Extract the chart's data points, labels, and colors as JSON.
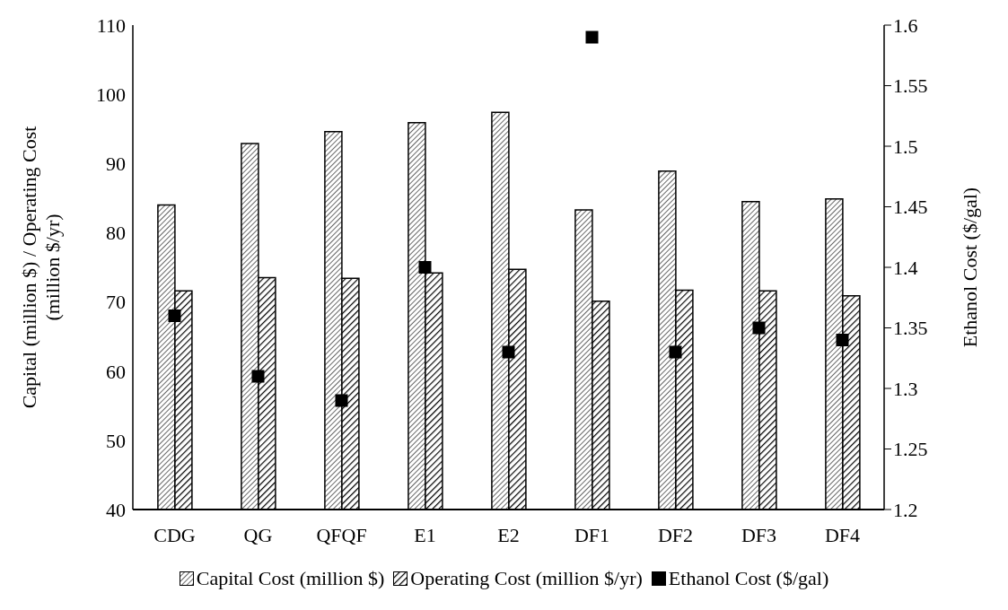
{
  "chart_data": {
    "type": "bar",
    "categories": [
      "CDG",
      "QG",
      "QFQF",
      "E1",
      "E2",
      "DF1",
      "DF2",
      "DF3",
      "DF4"
    ],
    "ylabel": "Capital (million $) / Operating Cost (million $/yr)",
    "y2label": "Ethanol Cost ($/gal)",
    "ylim": [
      40,
      110
    ],
    "yticks": [
      40,
      50,
      60,
      70,
      80,
      90,
      100,
      110
    ],
    "y2lim": [
      1.2,
      1.6
    ],
    "y2ticks": [
      1.2,
      1.25,
      1.3,
      1.35,
      1.4,
      1.45,
      1.5,
      1.55,
      1.6
    ],
    "legend": "bottom",
    "series": [
      {
        "name": "Capital Cost (million $)",
        "color": "#000000",
        "values": [
          84.0,
          92.9,
          94.6,
          95.9,
          97.4,
          83.3,
          88.9,
          84.5,
          84.9
        ]
      },
      {
        "name": "Operating Cost (million $/yr)",
        "color": "#000000",
        "values": [
          71.6,
          73.5,
          73.4,
          74.2,
          74.7,
          70.1,
          71.7,
          71.6,
          70.9
        ]
      },
      {
        "name": "Ethanol Cost ($/gal)",
        "type": "scatter",
        "axis": "y2",
        "marker": "square",
        "color": "#000000",
        "values": [
          1.36,
          1.31,
          1.29,
          1.4,
          1.33,
          1.59,
          1.33,
          1.35,
          1.34
        ]
      }
    ]
  }
}
